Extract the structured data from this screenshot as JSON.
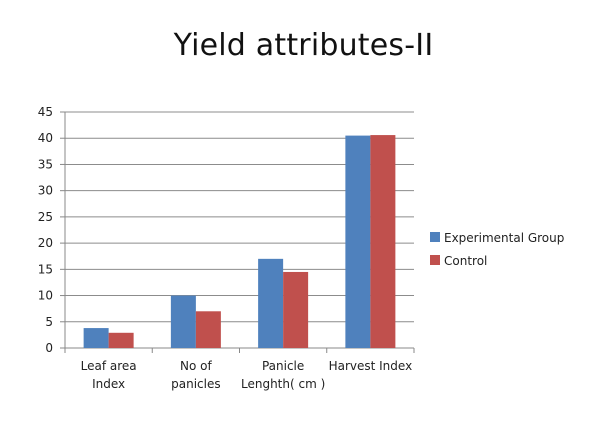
{
  "slide": {
    "title": "Yield attributes-II"
  },
  "colors": {
    "experimental": "#4F81BD",
    "control": "#C0504D",
    "axis": "#888888",
    "grid": "#8c8c8c"
  },
  "chart_data": {
    "type": "bar",
    "title": "",
    "xlabel": "",
    "ylabel": "",
    "ylim": [
      0,
      45
    ],
    "y_ticks": [
      "0",
      "5",
      "10",
      "15",
      "20",
      "25",
      "30",
      "35",
      "40",
      "45"
    ],
    "grid": true,
    "legend_position": "right",
    "categories": [
      [
        "Leaf area",
        "Index"
      ],
      [
        "No of",
        "panicles"
      ],
      [
        "Panicle",
        "Lenghth( cm )"
      ],
      [
        "Harvest Index"
      ]
    ],
    "series": [
      {
        "name": "Experimental Group",
        "color_key": "experimental",
        "values": [
          3.8,
          10,
          17,
          40.5
        ]
      },
      {
        "name": "Control",
        "color_key": "control",
        "values": [
          2.9,
          7,
          14.5,
          40.6
        ]
      }
    ]
  }
}
